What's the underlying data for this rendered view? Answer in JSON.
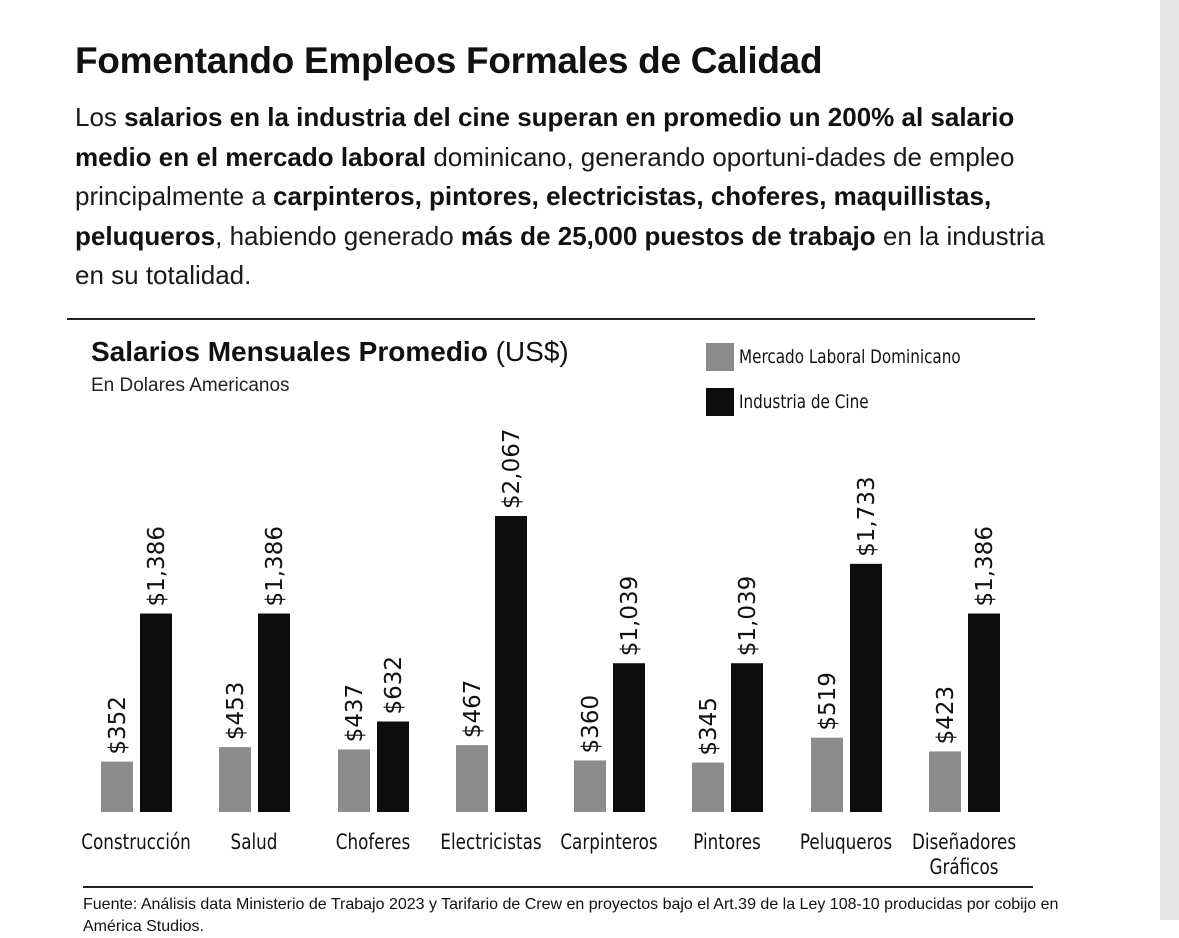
{
  "heading": "Fomentando Empleos Formales de Calidad",
  "intro": {
    "s1": "Los ",
    "b1": "salarios en la industria del cine superan en promedio un 200% al salario medio en el mercado laboral",
    "s2": " dominicano, generando oportuni-dades de empleo principalmente a ",
    "b2": "carpinteros, pintores, electricistas, choferes, maquillistas, peluqueros",
    "s3": ", habiendo generado ",
    "b3": "más de 25,000 puestos de trabajo",
    "s4": " en la industria en su totalidad."
  },
  "chart_data": {
    "type": "bar",
    "title": "Salarios Mensuales Promedio",
    "title_unit": "(US$)",
    "subtitle": "En Dolares Americanos",
    "categories": [
      "Construcción",
      "Salud",
      "Choferes",
      "Electricistas",
      "Carpinteros",
      "Pintores",
      "Peluqueros",
      "Diseñadores Gráficos"
    ],
    "series": [
      {
        "name": "Mercado Laboral Dominicano",
        "color": "#8c8c8c",
        "values": [
          352,
          453,
          437,
          467,
          360,
          345,
          519,
          423
        ],
        "labels": [
          "$352",
          "$453",
          "$437",
          "$467",
          "$360",
          "$345",
          "$519",
          "$423"
        ]
      },
      {
        "name": "Industria de Cine",
        "color": "#0d0d0d",
        "values": [
          1386,
          1386,
          632,
          2067,
          1039,
          1039,
          1733,
          1386
        ],
        "labels": [
          "$1,386",
          "$1,386",
          "$632",
          "$2,067",
          "$1,039",
          "$1,039",
          "$1,733",
          "$1,386"
        ]
      }
    ],
    "xlabel": "",
    "ylabel": "",
    "ylim": [
      0,
      2067
    ],
    "grid": false,
    "legend": "top-right"
  },
  "source_text": "Fuente: Análisis data Ministerio de Trabajo 2023 y Tarifario de Crew en proyectos bajo el Art.39 de la Ley 108-10 producidas por cobijo en América Studios."
}
